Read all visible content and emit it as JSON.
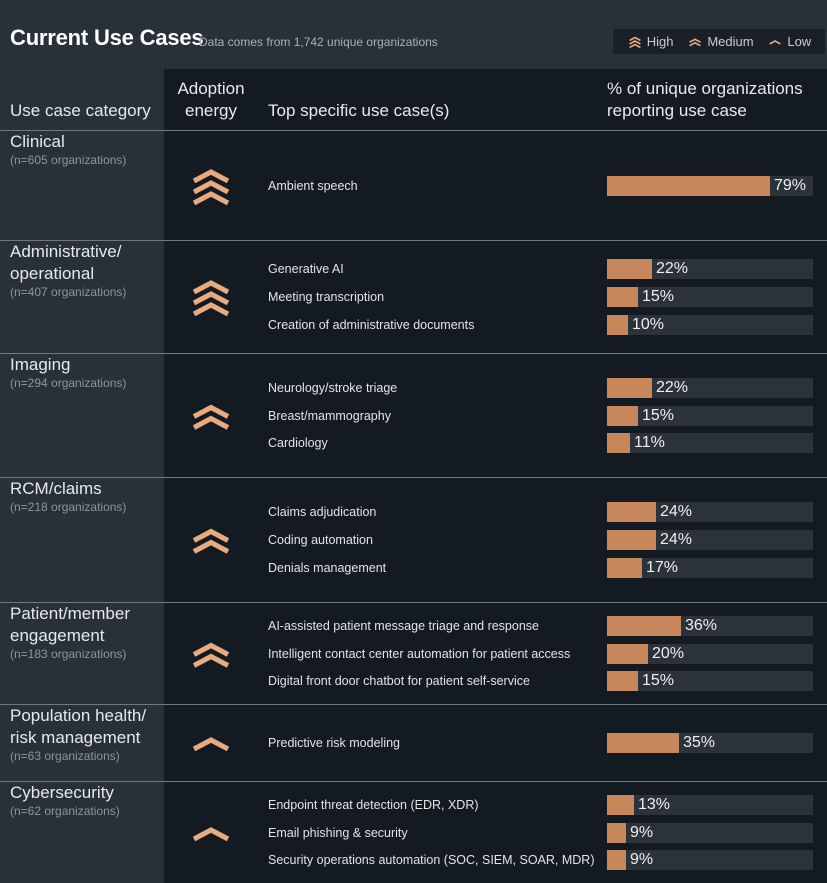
{
  "header": {
    "title": "Current Use Cases",
    "subtitle": "Data comes from 1,742 unique organizations",
    "legend": [
      {
        "label": "High",
        "level": 3
      },
      {
        "label": "Medium",
        "level": 2
      },
      {
        "label": "Low",
        "level": 1
      }
    ]
  },
  "columns": {
    "category": "Use case category",
    "adoption": "Adoption energy",
    "use_case": "Top specific use case(s)",
    "percent": "% of unique organizations reporting use case"
  },
  "colors": {
    "accent": "#c8875a",
    "chevron": "#e8ab80",
    "track": "#2b323a",
    "panel": "#283039",
    "background": "#141a22"
  },
  "chart_data": {
    "type": "bar",
    "xlim": [
      0,
      100
    ],
    "groups": [
      {
        "category": "Clinical",
        "n_label": "(n=605 organizations)",
        "adoption": "High",
        "items": [
          {
            "label": "Ambient speech",
            "value": 79
          }
        ]
      },
      {
        "category": "Administrative/ operational",
        "n_label": "(n=407 organizations)",
        "adoption": "High",
        "items": [
          {
            "label": "Generative AI",
            "value": 22
          },
          {
            "label": "Meeting transcription",
            "value": 15
          },
          {
            "label": "Creation of administrative documents",
            "value": 10
          }
        ]
      },
      {
        "category": "Imaging",
        "n_label": "(n=294 organizations)",
        "adoption": "Medium",
        "items": [
          {
            "label": "Neurology/stroke triage",
            "value": 22
          },
          {
            "label": "Breast/mammography",
            "value": 15
          },
          {
            "label": "Cardiology",
            "value": 11
          }
        ]
      },
      {
        "category": "RCM/claims",
        "n_label": "(n=218 organizations)",
        "adoption": "Medium",
        "items": [
          {
            "label": "Claims adjudication",
            "value": 24
          },
          {
            "label": "Coding automation",
            "value": 24
          },
          {
            "label": "Denials management",
            "value": 17
          }
        ]
      },
      {
        "category": "Patient/member engagement",
        "n_label": "(n=183 organizations)",
        "adoption": "Medium",
        "items": [
          {
            "label": "AI-assisted patient message triage and response",
            "value": 36
          },
          {
            "label": "Intelligent contact center automation for patient access",
            "value": 20
          },
          {
            "label": "Digital front door chatbot for patient self-service",
            "value": 15
          }
        ]
      },
      {
        "category": "Population health/ risk management",
        "n_label": "(n=63 organizations)",
        "adoption": "Low",
        "items": [
          {
            "label": "Predictive risk modeling",
            "value": 35
          }
        ]
      },
      {
        "category": "Cybersecurity",
        "n_label": "(n=62 organizations)",
        "adoption": "Low",
        "items": [
          {
            "label": "Endpoint threat detection (EDR, XDR)",
            "value": 13
          },
          {
            "label": "Email phishing & security",
            "value": 9
          },
          {
            "label": "Security operations automation (SOC, SIEM, SOAR, MDR)",
            "value": 9
          }
        ]
      }
    ]
  }
}
